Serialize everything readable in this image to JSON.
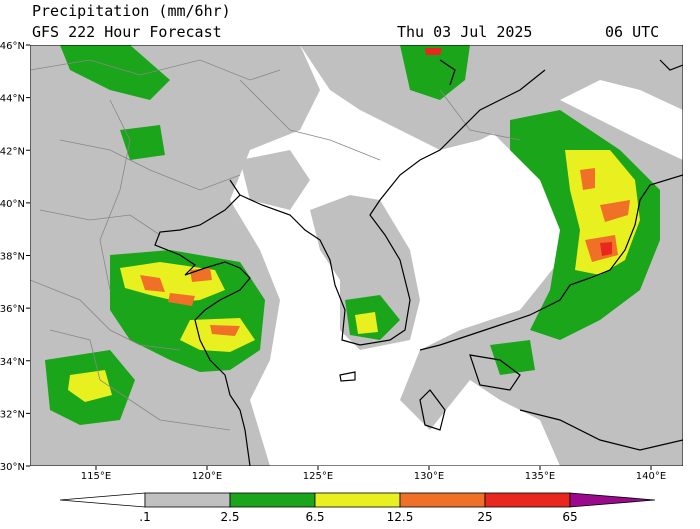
{
  "header": {
    "title": "Precipitation (mm/6hr)",
    "subtitle": "GFS 222 Hour Forecast",
    "date": "Thu 03 Jul 2025",
    "time": "06 UTC"
  },
  "map": {
    "lat_labels": [
      "46°N",
      "44°N",
      "42°N",
      "40°N",
      "38°N",
      "36°N",
      "34°N",
      "32°N",
      "30°N"
    ],
    "lon_labels": [
      "115°E",
      "120°E",
      "125°E",
      "130°E",
      "135°E",
      "140°E"
    ]
  },
  "legend": {
    "labels": [
      ".1",
      "2.5",
      "6.5",
      "12.5",
      "25",
      "65"
    ]
  }
}
